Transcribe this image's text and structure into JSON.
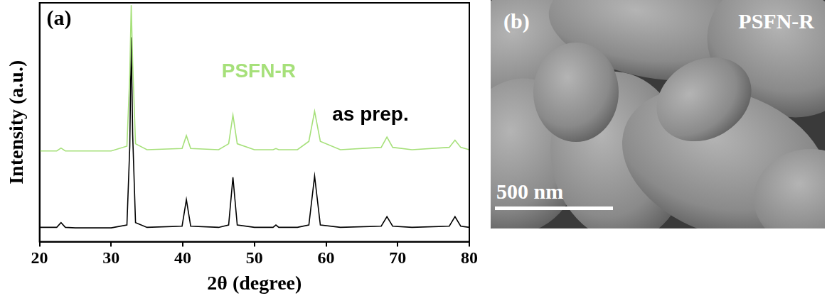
{
  "chart_data": {
    "type": "line",
    "panel_label": "(a)",
    "x_label": "2θ (degree)",
    "y_label": "Intensity (a.u.)",
    "x": [
      20,
      22.4,
      23.0,
      23.6,
      25,
      30,
      32.2,
      32.6,
      32.8,
      33.0,
      33.4,
      35,
      39.9,
      40.5,
      41.1,
      45,
      46.4,
      47.0,
      47.6,
      50,
      52.6,
      53.0,
      53.4,
      56,
      57.6,
      58.4,
      59.2,
      62,
      67.7,
      68.5,
      69.3,
      72,
      77.2,
      78.0,
      78.8,
      80
    ],
    "series": [
      {
        "name": "PSFN-R",
        "color": "#a6e07a",
        "values": [
          38,
          38,
          39.2,
          38,
          38,
          38,
          40,
          70,
          99,
          75,
          41,
          38.5,
          39,
          44.4,
          39,
          38.5,
          41,
          53,
          41,
          38.5,
          38.5,
          39,
          38.5,
          38.5,
          42,
          54.6,
          42,
          38.5,
          39.5,
          43.8,
          39.5,
          38.5,
          39.5,
          42.5,
          39.5,
          38.5
        ]
      },
      {
        "name": "as prep.",
        "color": "#000000",
        "values": [
          6,
          6,
          8,
          6,
          5.8,
          5.8,
          7,
          40,
          85.6,
          45,
          8,
          6,
          6.5,
          17.6,
          6.5,
          6,
          7,
          27,
          7,
          6,
          6,
          7,
          6,
          6,
          7,
          27.5,
          7,
          6,
          6.5,
          10.5,
          6.5,
          6,
          6.5,
          10.5,
          6.5,
          6
        ]
      }
    ],
    "xlim": [
      20,
      80
    ],
    "xticks": [
      20,
      30,
      40,
      50,
      60,
      70,
      80
    ],
    "ylim": [
      0,
      100
    ],
    "tick_labels": "x",
    "grid": false
  },
  "sem_image": {
    "panel_label": "(b)",
    "title": "PSFN-R",
    "scale_bar": "500 nm"
  }
}
